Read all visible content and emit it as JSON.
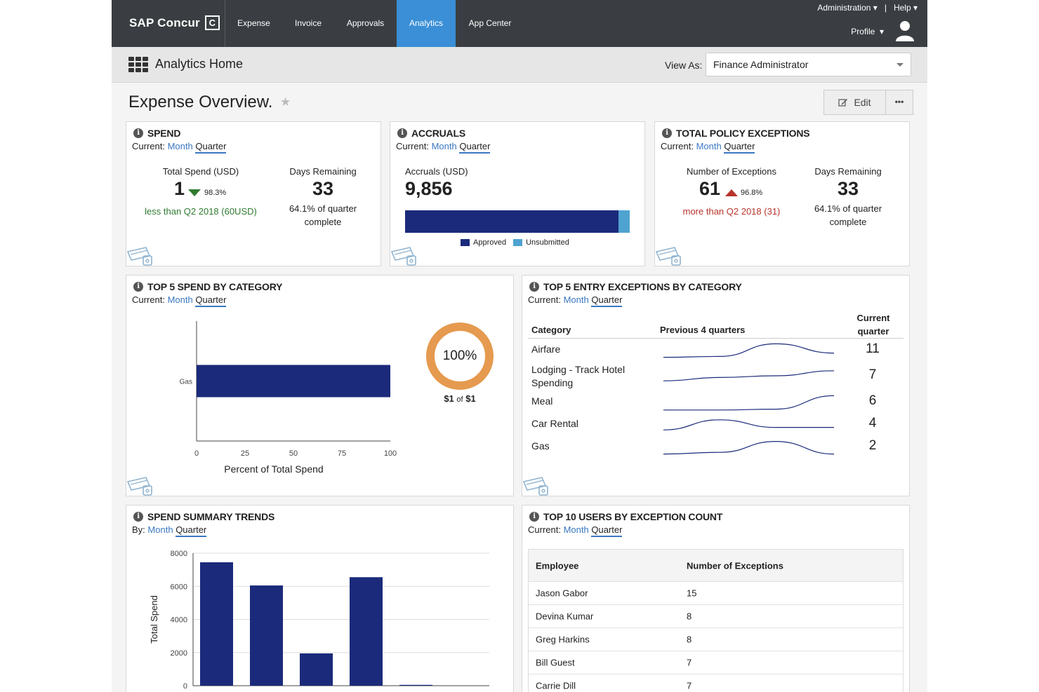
{
  "nav": {
    "brand": "SAP Concur",
    "brand_mark": "C",
    "items": [
      {
        "label": "Expense",
        "active": false
      },
      {
        "label": "Invoice",
        "active": false
      },
      {
        "label": "Approvals",
        "active": false
      },
      {
        "label": "Analytics",
        "active": true
      },
      {
        "label": "App Center",
        "active": false
      }
    ],
    "administration": "Administration",
    "separator": "|",
    "help": "Help",
    "profile": "Profile",
    "accent_color": "#3a8fd6"
  },
  "subheader": {
    "title": "Analytics Home",
    "view_as_label": "View As:",
    "view_as_value": "Finance Administrator"
  },
  "overview": {
    "title": "Expense Overview.",
    "edit_label": "Edit",
    "more_label": "•••"
  },
  "period": {
    "current_label": "Current:",
    "by_label": "By:",
    "month": "Month",
    "quarter": "Quarter"
  },
  "spend": {
    "title": "SPEND",
    "total_label": "Total Spend (USD)",
    "total_value": "1",
    "total_pct": "98.3%",
    "comparison": "less than Q2 2018 (60USD)",
    "days_label": "Days Remaining",
    "days_value": "33",
    "days_note_1": "64.1% of quarter",
    "days_note_2": "complete"
  },
  "accruals": {
    "title": "ACCRUALS",
    "label": "Accruals (USD)",
    "value": "9,856",
    "approved_fraction": 0.95,
    "legend_approved": "Approved",
    "legend_unsubmitted": "Unsubmitted",
    "approved_color": "#1b2a7a",
    "unsubmitted_color": "#4fa3d1"
  },
  "policy": {
    "title": "TOTAL POLICY EXCEPTIONS",
    "count_label": "Number of Exceptions",
    "count_value": "61",
    "count_pct": "96.8%",
    "comparison": "more than Q2 2018 (31)",
    "days_label": "Days Remaining",
    "days_value": "33",
    "days_note_1": "64.1% of quarter",
    "days_note_2": "complete"
  },
  "top5spend": {
    "title": "TOP 5 SPEND BY CATEGORY",
    "xlabel": "Percent of Total Spend",
    "donut_label": "100%",
    "donut_amount": "$1",
    "donut_of": "of",
    "donut_total": "$1",
    "donut_color": "#e59a4f"
  },
  "top5exceptions": {
    "title": "TOP 5 ENTRY EXCEPTIONS BY CATEGORY",
    "col_category": "Category",
    "col_previous": "Previous 4 quarters",
    "col_current_1": "Current",
    "col_current_2": "quarter",
    "rows": [
      {
        "category": "Airfare",
        "category_2": "",
        "value": "11"
      },
      {
        "category": "Lodging - Track Hotel",
        "category_2": "Spending",
        "value": "7"
      },
      {
        "category": "Meal",
        "category_2": "",
        "value": "6"
      },
      {
        "category": "Car Rental",
        "category_2": "",
        "value": "4"
      },
      {
        "category": "Gas",
        "category_2": "",
        "value": "2"
      }
    ]
  },
  "trends": {
    "title": "SPEND SUMMARY TRENDS"
  },
  "top10users": {
    "title": "TOP 10 USERS BY EXCEPTION COUNT",
    "col_employee": "Employee",
    "col_count": "Number of Exceptions",
    "rows": [
      {
        "name": "Jason Gabor",
        "count": "15"
      },
      {
        "name": "Devina Kumar",
        "count": "8"
      },
      {
        "name": "Greg Harkins",
        "count": "8"
      },
      {
        "name": "Bill Guest",
        "count": "7"
      },
      {
        "name": "Carrie Dill",
        "count": "7"
      }
    ]
  },
  "chart_data": [
    {
      "type": "bar",
      "orientation": "horizontal",
      "categories": [
        "Gas"
      ],
      "values": [
        100
      ],
      "xlabel": "Percent of Total Spend",
      "xlim": [
        0,
        100
      ],
      "xticks": [
        0,
        25,
        50,
        75,
        100
      ],
      "color": "#1b2a7a"
    },
    {
      "type": "bar",
      "categories": [
        "",
        "",
        "",
        "",
        ""
      ],
      "values": [
        7450,
        6050,
        1950,
        6550,
        50
      ],
      "ylabel": "Total Spend",
      "ylim": [
        0,
        8000
      ],
      "yticks": [
        0,
        2000,
        4000,
        6000,
        8000
      ],
      "grid": true,
      "color": "#1b2a7a"
    },
    {
      "type": "line",
      "title": "Previous 4 quarters",
      "series": [
        {
          "name": "Airfare",
          "values": [
            0.1,
            0.15,
            0.9,
            0.35
          ]
        },
        {
          "name": "Lodging - Track Hotel Spending",
          "values": [
            0.2,
            0.4,
            0.5,
            0.8
          ]
        },
        {
          "name": "Meal",
          "values": [
            0.05,
            0.05,
            0.1,
            0.9
          ]
        },
        {
          "name": "Car Rental",
          "values": [
            0.2,
            0.8,
            0.35,
            0.35
          ]
        },
        {
          "name": "Gas",
          "values": [
            0.1,
            0.2,
            0.85,
            0.1
          ]
        }
      ]
    }
  ]
}
